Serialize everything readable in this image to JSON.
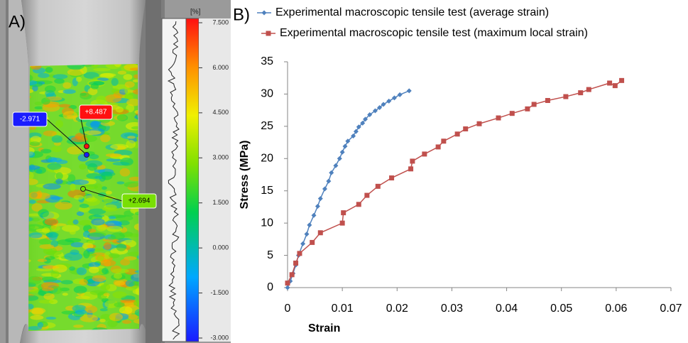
{
  "chart_data": [
    {
      "type": "strain-map",
      "label": "A)",
      "unit": "[%]",
      "clim": [
        -3,
        7.5
      ],
      "cticks": [
        {
          "value": 7.5,
          "label": "7.500"
        },
        {
          "value": 6,
          "label": "6.000"
        },
        {
          "value": 4.5,
          "label": "4.500"
        },
        {
          "value": 3,
          "label": "3.000"
        },
        {
          "value": 1.5,
          "label": "1.500"
        },
        {
          "value": 0,
          "label": "0.000"
        },
        {
          "value": -1.5,
          "label": "-1.500"
        },
        {
          "value": -3,
          "label": "-3.000"
        }
      ],
      "points": [
        {
          "value": -2.971,
          "label": "-2.971"
        },
        {
          "value": 8.487,
          "label": "+8.487"
        },
        {
          "value": 2.694,
          "label": "+2.694"
        }
      ]
    },
    {
      "type": "line",
      "label": "B)",
      "xlabel": "Strain",
      "ylabel": "Stress (MPa)",
      "xlim": [
        0,
        0.07
      ],
      "xticks": [
        0,
        0.01,
        0.02,
        0.03,
        0.04,
        0.05,
        0.06,
        0.07
      ],
      "ylim": [
        0,
        35
      ],
      "yticks": [
        0,
        5,
        10,
        15,
        20,
        25,
        30,
        35
      ],
      "series": [
        {
          "name": "Experimental macroscopic tensile test (average strain)",
          "color": "#4f81bd",
          "marker": "diamond",
          "x": [
            0,
            0.0005,
            0.001,
            0.0015,
            0.002,
            0.0028,
            0.0035,
            0.004,
            0.0048,
            0.0055,
            0.006,
            0.0068,
            0.0075,
            0.008,
            0.0088,
            0.0095,
            0.01,
            0.0105,
            0.011,
            0.012,
            0.0125,
            0.013,
            0.0137,
            0.0142,
            0.015,
            0.016,
            0.0168,
            0.0175,
            0.0185,
            0.0195,
            0.0205,
            0.0222
          ],
          "values": [
            0,
            1,
            2.2,
            3.5,
            5,
            6.8,
            8.3,
            9.7,
            11.2,
            12.6,
            13.8,
            15.3,
            16.5,
            17.8,
            18.9,
            20,
            21,
            21.9,
            22.7,
            23.5,
            24.2,
            24.9,
            25.5,
            26.1,
            26.8,
            27.4,
            27.9,
            28.4,
            28.9,
            29.4,
            29.9,
            30.5
          ]
        },
        {
          "name": "Experimental macroscopic tensile test (maximum local strain)",
          "color": "#c0504d",
          "marker": "square",
          "x": [
            0,
            0.0008,
            0.0015,
            0.0022,
            0.0045,
            0.006,
            0.01,
            0.0102,
            0.013,
            0.0145,
            0.0165,
            0.019,
            0.0225,
            0.0228,
            0.025,
            0.0275,
            0.0285,
            0.031,
            0.0325,
            0.035,
            0.0385,
            0.041,
            0.0438,
            0.045,
            0.0475,
            0.0508,
            0.0535,
            0.055,
            0.0588,
            0.0598,
            0.061
          ],
          "values": [
            0.7,
            2,
            3.8,
            5.3,
            7,
            8.5,
            10,
            11.6,
            12.9,
            14.3,
            15.7,
            17,
            18.4,
            19.6,
            20.7,
            21.8,
            22.7,
            23.8,
            24.6,
            25.4,
            26.3,
            27,
            27.7,
            28.4,
            29,
            29.6,
            30.2,
            30.7,
            31.7,
            31.3,
            32.1
          ]
        }
      ]
    }
  ]
}
